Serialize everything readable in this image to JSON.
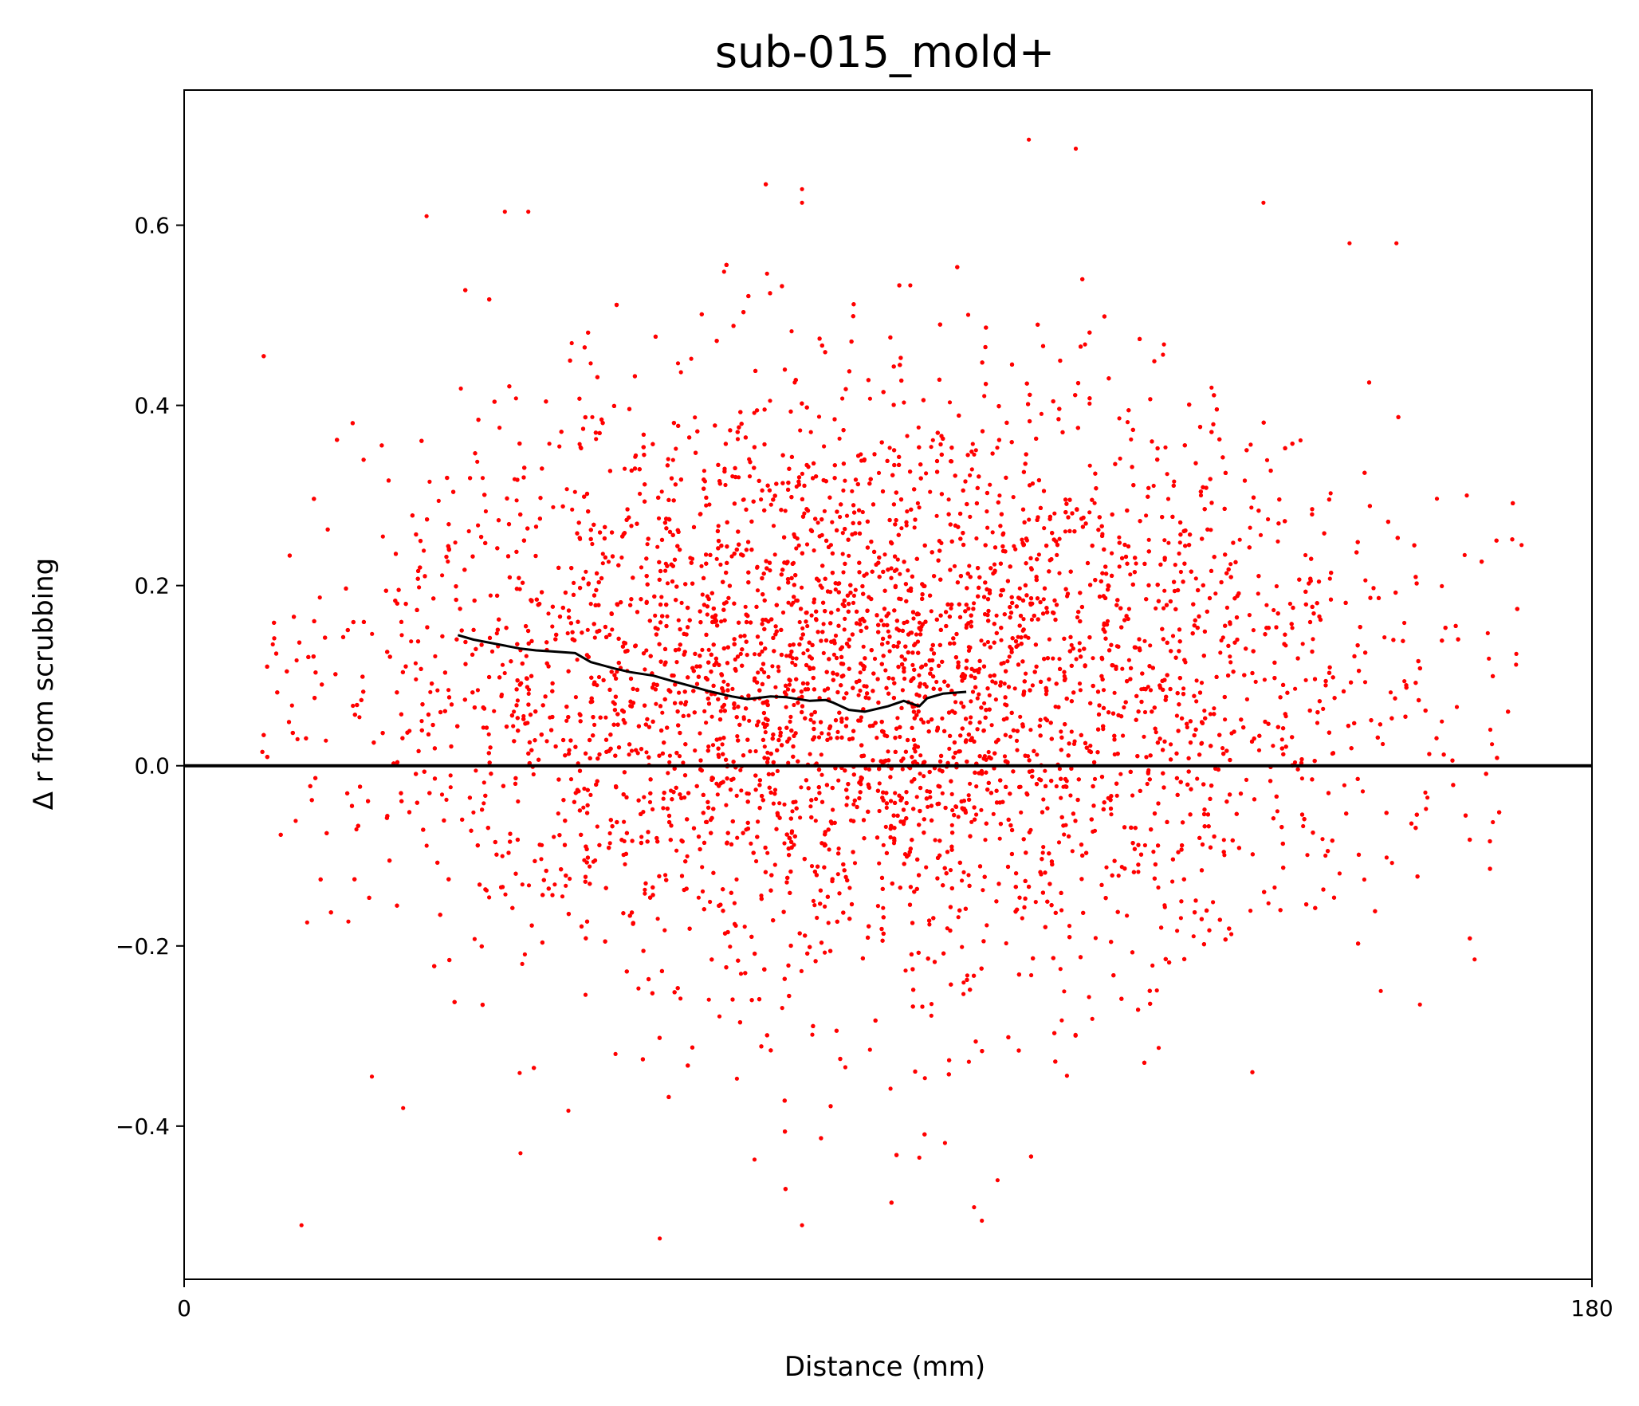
{
  "chart_data": {
    "type": "scatter",
    "title": "sub-015_mold+",
    "xlabel": "Distance (mm)",
    "ylabel": "Δ r from scrubbing",
    "xlim": [
      0,
      180
    ],
    "ylim": [
      -0.57,
      0.75
    ],
    "x_ticks": [
      0,
      180
    ],
    "x_tick_labels": [
      "0",
      "180"
    ],
    "y_ticks": [
      -0.4,
      -0.2,
      0.0,
      0.2,
      0.4,
      0.6
    ],
    "y_tick_labels": [
      "−0.4",
      "−0.2",
      "0.0",
      "0.2",
      "0.4",
      "0.6"
    ],
    "grid": false,
    "legend": "none",
    "scatter_color": "#ff0000",
    "line_color": "#000000",
    "scatter_cloud": {
      "x_range": [
        10,
        171
      ],
      "x_center": 88,
      "y_center": 0.09,
      "y_spread": 0.17,
      "approx_point_count": 9000
    },
    "scatter_outliers": [
      {
        "x": 108,
        "y": 0.695
      },
      {
        "x": 114,
        "y": 0.685
      },
      {
        "x": 79,
        "y": 0.64
      },
      {
        "x": 79,
        "y": 0.625
      },
      {
        "x": 138,
        "y": 0.625
      },
      {
        "x": 41,
        "y": 0.615
      },
      {
        "x": 44,
        "y": 0.615
      },
      {
        "x": 31,
        "y": 0.61
      },
      {
        "x": 155,
        "y": 0.58
      },
      {
        "x": 149,
        "y": 0.58
      },
      {
        "x": 171,
        "y": 0.245
      },
      {
        "x": 164,
        "y": 0.3
      },
      {
        "x": 167,
        "y": 0.04
      },
      {
        "x": 165,
        "y": -0.215
      },
      {
        "x": 158,
        "y": -0.265
      },
      {
        "x": 153,
        "y": -0.25
      },
      {
        "x": 15,
        "y": -0.51
      },
      {
        "x": 79,
        "y": -0.51
      },
      {
        "x": 102,
        "y": -0.505
      },
      {
        "x": 101,
        "y": -0.49
      },
      {
        "x": 104,
        "y": -0.46
      },
      {
        "x": 43,
        "y": -0.43
      },
      {
        "x": 94,
        "y": -0.435
      },
      {
        "x": 24,
        "y": -0.345
      },
      {
        "x": 28,
        "y": -0.38
      }
    ],
    "series": [
      {
        "type": "line",
        "x": [
          35,
          37,
          40,
          43,
          45,
          47,
          50,
          52,
          55,
          57,
          60,
          62,
          65,
          67,
          70,
          72,
          75,
          77,
          80,
          82,
          83,
          85,
          87,
          90,
          92,
          94,
          95,
          97,
          100
        ],
        "y": [
          0.145,
          0.14,
          0.135,
          0.13,
          0.128,
          0.127,
          0.125,
          0.115,
          0.108,
          0.104,
          0.1,
          0.095,
          0.088,
          0.083,
          0.077,
          0.074,
          0.077,
          0.076,
          0.072,
          0.073,
          0.07,
          0.062,
          0.06,
          0.066,
          0.072,
          0.066,
          0.075,
          0.08,
          0.082
        ]
      }
    ],
    "hline_y": 0
  }
}
